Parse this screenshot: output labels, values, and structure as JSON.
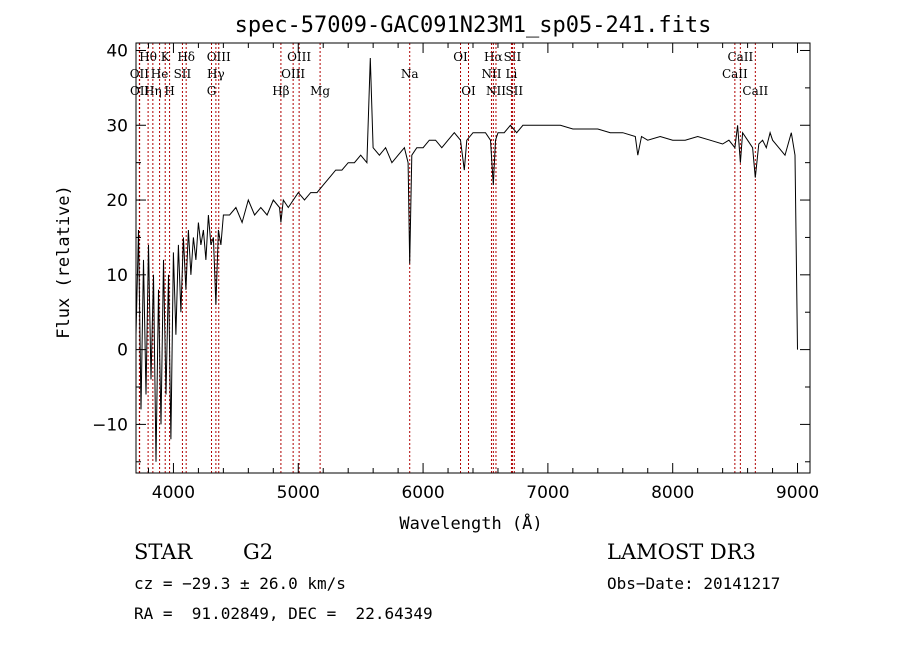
{
  "chart_data": {
    "type": "line",
    "title": "spec-57009-GAC091N23M1_sp05-241.fits",
    "xlabel": "Wavelength (Å)",
    "ylabel": "Flux (relative)",
    "xlim": [
      3700,
      9100
    ],
    "ylim": [
      -16.5,
      41
    ],
    "xticks": [
      4000,
      5000,
      6000,
      7000,
      8000,
      9000
    ],
    "yticks": [
      -10,
      0,
      10,
      20,
      30,
      40
    ],
    "xtick_labels": [
      "4000",
      "5000",
      "6000",
      "7000",
      "8000",
      "9000"
    ],
    "ytick_labels": [
      "−10",
      "0",
      "10",
      "20",
      "30",
      "40"
    ],
    "series": [
      {
        "name": "flux",
        "x": [
          3700,
          3720,
          3740,
          3760,
          3780,
          3800,
          3820,
          3840,
          3860,
          3880,
          3900,
          3920,
          3940,
          3960,
          3980,
          4000,
          4020,
          4040,
          4060,
          4080,
          4100,
          4120,
          4140,
          4160,
          4180,
          4200,
          4220,
          4240,
          4260,
          4280,
          4300,
          4320,
          4340,
          4360,
          4380,
          4400,
          4450,
          4500,
          4550,
          4600,
          4650,
          4700,
          4750,
          4800,
          4850,
          4861,
          4880,
          4920,
          4960,
          5000,
          5050,
          5100,
          5150,
          5200,
          5250,
          5300,
          5350,
          5400,
          5450,
          5500,
          5550,
          5577,
          5600,
          5650,
          5700,
          5750,
          5800,
          5850,
          5880,
          5893,
          5910,
          5950,
          6000,
          6050,
          6100,
          6150,
          6200,
          6250,
          6300,
          6330,
          6350,
          6400,
          6450,
          6500,
          6540,
          6563,
          6580,
          6600,
          6650,
          6700,
          6750,
          6800,
          6850,
          6900,
          6950,
          7000,
          7100,
          7200,
          7300,
          7400,
          7500,
          7600,
          7700,
          7720,
          7750,
          7800,
          7900,
          8000,
          8100,
          8200,
          8300,
          8400,
          8450,
          8498,
          8520,
          8542,
          8560,
          8600,
          8640,
          8662,
          8690,
          8720,
          8750,
          8780,
          8800,
          8850,
          8900,
          8950,
          8980,
          9000
        ],
        "y": [
          2,
          16,
          -8,
          12,
          -6,
          14,
          -4,
          10,
          -15,
          8,
          -10,
          12,
          -6,
          10,
          -12,
          13,
          2,
          14,
          5,
          15,
          8,
          16,
          10,
          15,
          12,
          17,
          14,
          16,
          12,
          18,
          14,
          15,
          6,
          16,
          14,
          18,
          18,
          19,
          17,
          20,
          18,
          19,
          18,
          20,
          19,
          17,
          20,
          19,
          20,
          21,
          20,
          21,
          21,
          22,
          23,
          24,
          24,
          25,
          25,
          26,
          25,
          39,
          27,
          26,
          27,
          25,
          26,
          27,
          25,
          11.5,
          26,
          27,
          27,
          28,
          28,
          27,
          28,
          29,
          28,
          24,
          28,
          29,
          29,
          29,
          28,
          22,
          28,
          29,
          29,
          30,
          29,
          30,
          30,
          30,
          30,
          30,
          30,
          29.5,
          29.5,
          29.5,
          29,
          29,
          28.5,
          26,
          28.5,
          28,
          28.5,
          28,
          28,
          28.5,
          28,
          27.5,
          28,
          27,
          30,
          25,
          29,
          28,
          27,
          23,
          27.5,
          28,
          27,
          29,
          28,
          27,
          26,
          29,
          26,
          0
        ]
      }
    ],
    "spectral_lines": [
      {
        "label": "Hθ",
        "wavelength": 3797,
        "row": 1
      },
      {
        "label": "OII",
        "wavelength": 3727,
        "row": 2
      },
      {
        "label": "OII",
        "wavelength": 3729,
        "row": 3
      },
      {
        "label": "Hη",
        "wavelength": 3835,
        "row": 3
      },
      {
        "label": "He",
        "wavelength": 3889,
        "row": 2
      },
      {
        "label": "K",
        "wavelength": 3934,
        "row": 1
      },
      {
        "label": "H",
        "wavelength": 3969,
        "row": 3
      },
      {
        "label": "SII",
        "wavelength": 4072,
        "row": 2
      },
      {
        "label": "Hδ",
        "wavelength": 4102,
        "row": 1
      },
      {
        "label": "OIII",
        "wavelength": 4363,
        "row": 1
      },
      {
        "label": "Hγ",
        "wavelength": 4340,
        "row": 2
      },
      {
        "label": "G",
        "wavelength": 4305,
        "row": 3
      },
      {
        "label": "Hβ",
        "wavelength": 4861,
        "row": 3
      },
      {
        "label": "OIII",
        "wavelength": 5007,
        "row": 1
      },
      {
        "label": "OIII",
        "wavelength": 4959,
        "row": 2
      },
      {
        "label": "Mg",
        "wavelength": 5175,
        "row": 3
      },
      {
        "label": "Na",
        "wavelength": 5893,
        "row": 2
      },
      {
        "label": "OI",
        "wavelength": 6300,
        "row": 1
      },
      {
        "label": "OI",
        "wavelength": 6364,
        "row": 3
      },
      {
        "label": "Hα",
        "wavelength": 6563,
        "row": 1
      },
      {
        "label": "SII",
        "wavelength": 6716,
        "row": 1
      },
      {
        "label": "NII",
        "wavelength": 6548,
        "row": 2
      },
      {
        "label": "Li",
        "wavelength": 6708,
        "row": 2
      },
      {
        "label": "NII",
        "wavelength": 6584,
        "row": 3
      },
      {
        "label": "SII",
        "wavelength": 6731,
        "row": 3
      },
      {
        "label": "CaII",
        "wavelength": 8542,
        "row": 1
      },
      {
        "label": "CaII",
        "wavelength": 8498,
        "row": 2
      },
      {
        "label": "CaII",
        "wavelength": 8662,
        "row": 3
      }
    ]
  },
  "info": {
    "object_class": "STAR",
    "subclass": "G2",
    "survey": "LAMOST DR3",
    "redshift": "cz = −29.3 ± 26.0 km/s",
    "obs_date": "Obs−Date: 20141217",
    "coords": "RA =  91.02849, DEC =  22.64349"
  }
}
